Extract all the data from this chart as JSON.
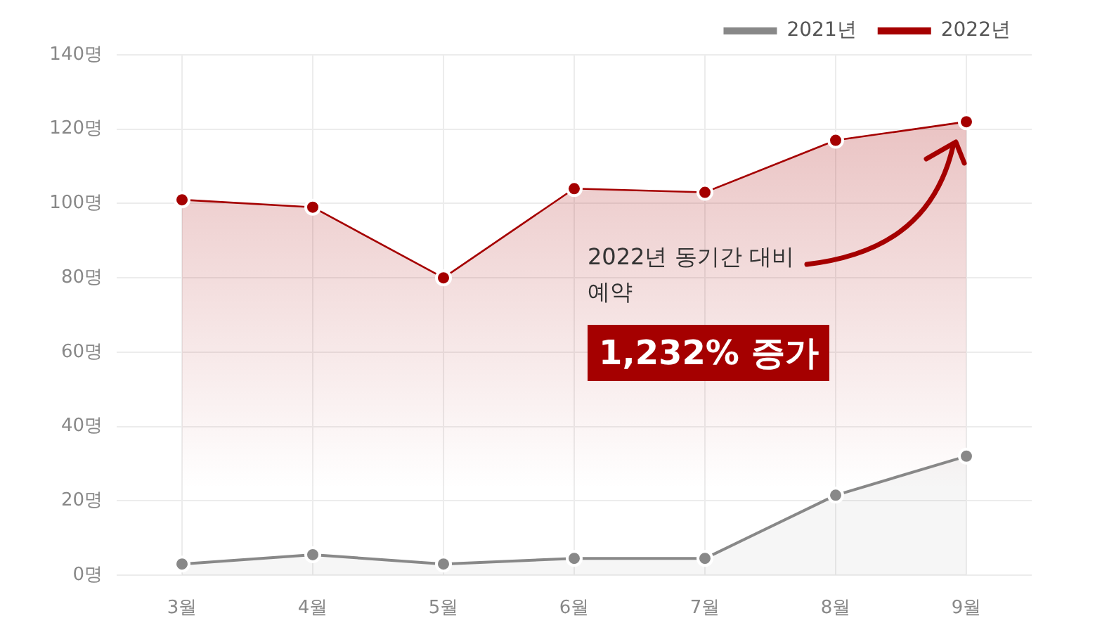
{
  "chart_data": {
    "type": "area",
    "categories": [
      "3월",
      "4월",
      "5월",
      "6월",
      "7월",
      "8월",
      "9월"
    ],
    "series": [
      {
        "name": "2021년",
        "color": "#888888",
        "values": [
          3,
          5.5,
          3,
          4.5,
          4.5,
          21.5,
          32
        ]
      },
      {
        "name": "2022년",
        "color": "#a50000",
        "values": [
          101,
          99,
          80,
          104,
          103,
          117,
          122
        ]
      }
    ],
    "ylim": [
      0,
      140
    ],
    "yticks": [
      {
        "value": 0,
        "label": "0명"
      },
      {
        "value": 20,
        "label": "20명"
      },
      {
        "value": 40,
        "label": "40명"
      },
      {
        "value": 60,
        "label": "60명"
      },
      {
        "value": 80,
        "label": "80명"
      },
      {
        "value": 100,
        "label": "100명"
      },
      {
        "value": 120,
        "label": "120명"
      },
      {
        "value": 140,
        "label": "140명"
      }
    ],
    "grid": true,
    "legend": "top right",
    "marker": "circle",
    "line_style": "solid",
    "annotations": [
      "2022년 동기간 대비\n예약",
      "1,232% 증가"
    ]
  }
}
